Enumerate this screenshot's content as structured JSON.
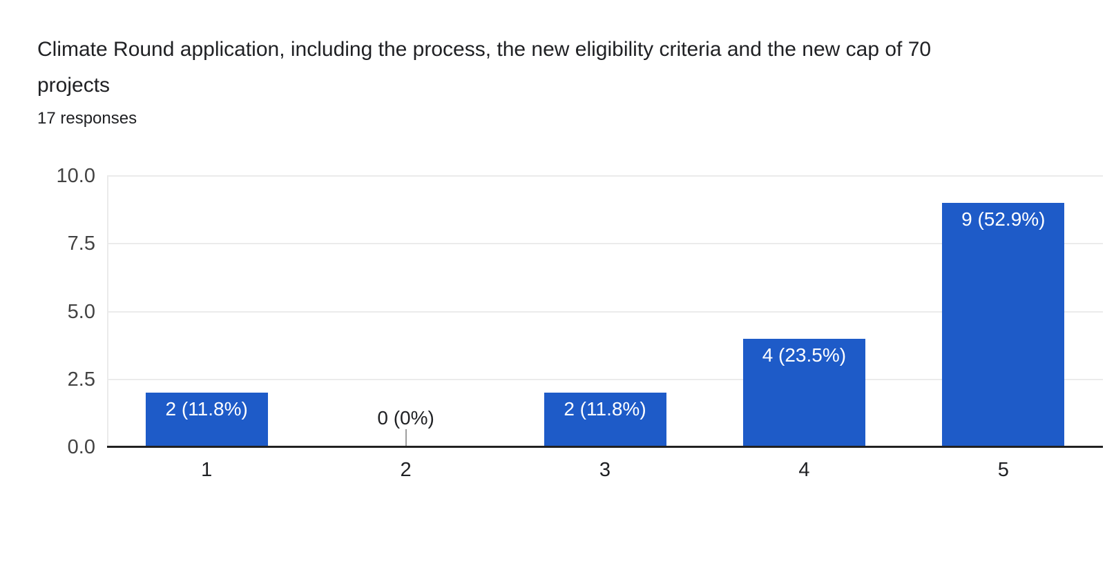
{
  "header": {
    "title_lines": [
      "Climate Round application, including the process, the new eligibility criteria and the new cap of 70",
      "projects"
    ],
    "responses_label": "17 responses"
  },
  "chart_data": {
    "type": "bar",
    "title": "Climate Round application, including the process, the new eligibility criteria and the new cap of 70 projects",
    "subtitle": "17 responses",
    "total_responses": 17,
    "categories": [
      "1",
      "2",
      "3",
      "4",
      "5"
    ],
    "values": [
      2,
      0,
      2,
      4,
      9
    ],
    "percentages": [
      11.8,
      0,
      11.8,
      23.5,
      52.9
    ],
    "bar_labels": [
      "2 (11.8%)",
      "0 (0%)",
      "2 (11.8%)",
      "4 (23.5%)",
      "9 (52.9%)"
    ],
    "xlabel": "",
    "ylabel": "",
    "ylim": [
      0,
      10
    ],
    "yticks": [
      "0.0",
      "2.5",
      "5.0",
      "7.5",
      "10.0"
    ],
    "grid": true,
    "legend": "none",
    "colors": {
      "bar": "#1E5BC8",
      "bar_label_text": "#FFFFFF",
      "gridline": "#EBEBEB",
      "axis_line": "#212121",
      "tick_label": "#424242",
      "x_label": "#202124",
      "zero_stub": "#9E9E9E"
    }
  }
}
